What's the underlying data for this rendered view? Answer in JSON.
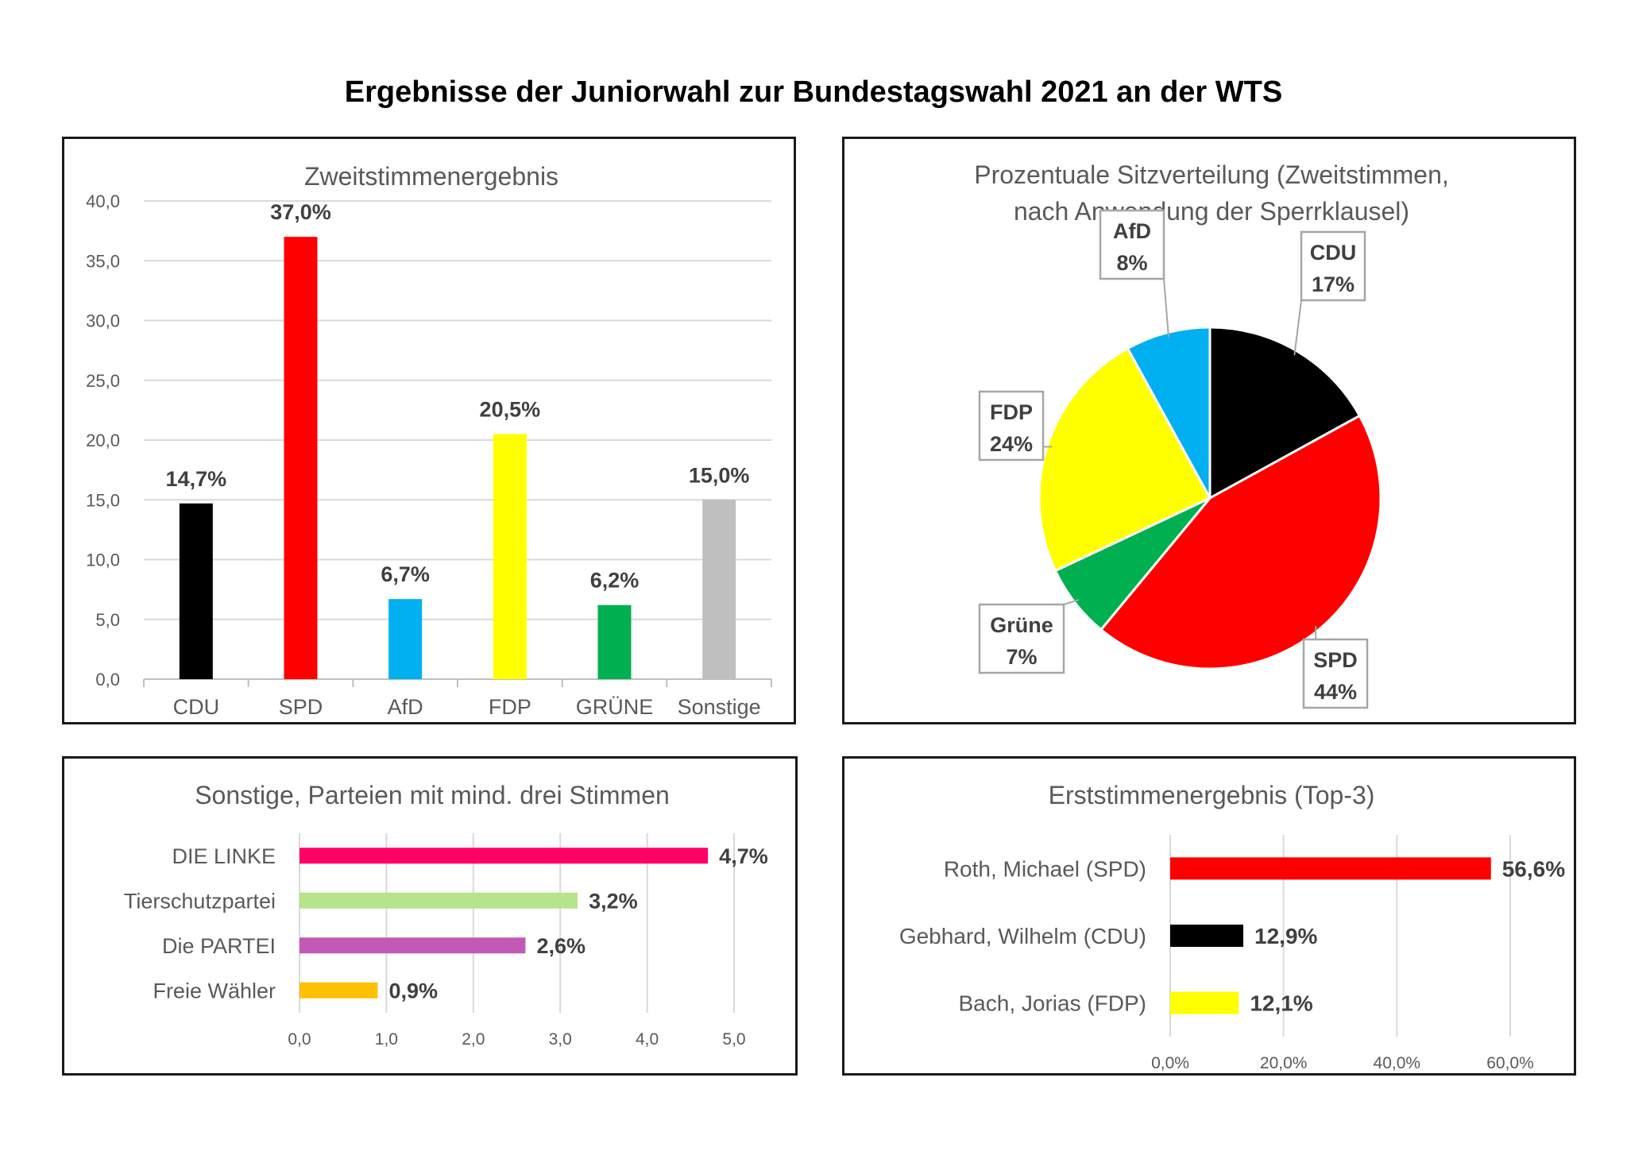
{
  "page_title": "Ergebnisse der Juniorwahl zur Bundestagswahl 2021 an der WTS",
  "chart_data": [
    {
      "type": "bar",
      "title": "Zweitstimmenergebnis",
      "categories": [
        "CDU",
        "SPD",
        "AfD",
        "FDP",
        "GRÜNE",
        "Sonstige"
      ],
      "values": [
        14.7,
        37.0,
        6.7,
        20.5,
        6.2,
        15.0
      ],
      "labels": [
        "14,7%",
        "37,0%",
        "6,7%",
        "20,5%",
        "6,2%",
        "15,0%"
      ],
      "colors": [
        "#000000",
        "#ff0000",
        "#00b0f0",
        "#ffff00",
        "#00b050",
        "#bfbfbf"
      ],
      "ylim": [
        0,
        40
      ],
      "yticks": [
        "0,0",
        "5,0",
        "10,0",
        "15,0",
        "20,0",
        "25,0",
        "30,0",
        "35,0",
        "40,0"
      ],
      "grid": true
    },
    {
      "type": "pie",
      "title_lines": [
        "Prozentuale Sitzverteilung (Zweitstimmen,",
        "nach Anwendung der Sperrklausel)"
      ],
      "slices": [
        {
          "name": "CDU",
          "value": 17,
          "label": "17%",
          "color": "#000000"
        },
        {
          "name": "SPD",
          "value": 44,
          "label": "44%",
          "color": "#ff0000"
        },
        {
          "name": "Grüne",
          "value": 7,
          "label": "7%",
          "color": "#00b050"
        },
        {
          "name": "FDP",
          "value": 24,
          "label": "24%",
          "color": "#ffff00"
        },
        {
          "name": "AfD",
          "value": 8,
          "label": "8%",
          "color": "#00b0f0"
        }
      ]
    },
    {
      "type": "bar",
      "orientation": "horizontal",
      "title": "Sonstige, Parteien mit mind. drei Stimmen",
      "categories": [
        "DIE LINKE",
        "Tierschutzpartei",
        "Die PARTEI",
        "Freie Wähler"
      ],
      "values": [
        4.7,
        3.2,
        2.6,
        0.9
      ],
      "labels": [
        "4,7%",
        "3,2%",
        "2,6%",
        "0,9%"
      ],
      "colors": [
        "#ff0066",
        "#b6e38c",
        "#c05ab4",
        "#ffc000"
      ],
      "xlim": [
        0,
        5
      ],
      "xticks": [
        "0,0",
        "1,0",
        "2,0",
        "3,0",
        "4,0",
        "5,0"
      ],
      "grid": true
    },
    {
      "type": "bar",
      "orientation": "horizontal",
      "title": "Erststimmenergebnis (Top-3)",
      "categories": [
        "Roth, Michael (SPD)",
        "Gebhard, Wilhelm (CDU)",
        "Bach, Jorias (FDP)"
      ],
      "values": [
        56.6,
        12.9,
        12.1
      ],
      "labels": [
        "56,6%",
        "12,9%",
        "12,1%"
      ],
      "colors": [
        "#ff0000",
        "#000000",
        "#ffff00"
      ],
      "xlim": [
        0,
        60
      ],
      "xticks": [
        "0,0%",
        "20,0%",
        "40,0%",
        "60,0%"
      ],
      "grid": true
    }
  ]
}
